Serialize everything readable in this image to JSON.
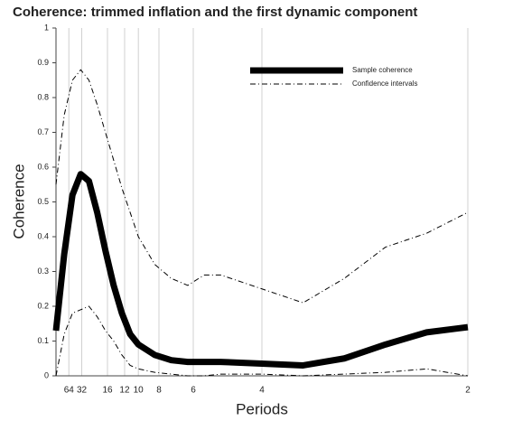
{
  "chart_data": {
    "type": "line",
    "title": "Coherence: trimmed inflation and the first dynamic component",
    "x_label": "Periods",
    "y_label": "Coherence",
    "x": [
      0,
      0.01,
      0.02,
      0.03,
      0.04,
      0.05,
      0.06,
      0.07,
      0.08,
      0.09,
      0.1,
      0.12,
      0.14,
      0.16,
      0.18,
      0.2,
      0.25,
      0.3,
      0.35,
      0.4,
      0.45,
      0.5
    ],
    "series": [
      {
        "name": "Sample coherence",
        "color": "#000000",
        "style": "solid",
        "width": 7,
        "values": [
          0.13,
          0.35,
          0.52,
          0.58,
          0.56,
          0.47,
          0.36,
          0.26,
          0.18,
          0.12,
          0.09,
          0.06,
          0.045,
          0.04,
          0.04,
          0.04,
          0.035,
          0.03,
          0.05,
          0.09,
          0.125,
          0.14
        ]
      },
      {
        "name": "Confidence intervals",
        "color": "#000000",
        "style": "dashdot",
        "width": 1,
        "values": [
          0.55,
          0.75,
          0.85,
          0.88,
          0.85,
          0.78,
          0.7,
          0.62,
          0.54,
          0.47,
          0.4,
          0.32,
          0.28,
          0.26,
          0.29,
          0.29,
          0.25,
          0.21,
          0.28,
          0.37,
          0.41,
          0.47
        ]
      },
      {
        "color": "#000000",
        "style": "dashdot",
        "width": 1,
        "values": [
          0.0,
          0.12,
          0.18,
          0.19,
          0.2,
          0.17,
          0.13,
          0.1,
          0.06,
          0.03,
          0.02,
          0.01,
          0.005,
          0,
          0,
          0.005,
          0.005,
          0,
          0.005,
          0.01,
          0.02,
          0.0
        ]
      }
    ],
    "xlim": [
      0,
      0.5
    ],
    "xticks": [
      {
        "value": 0.015625,
        "label": "64"
      },
      {
        "value": 0.03125,
        "label": "32"
      },
      {
        "value": 0.0625,
        "label": "16"
      },
      {
        "value": 0.083333,
        "label": "12"
      },
      {
        "value": 0.1,
        "label": "10"
      },
      {
        "value": 0.125,
        "label": "8"
      },
      {
        "value": 0.166667,
        "label": "6"
      },
      {
        "value": 0.25,
        "label": "4"
      },
      {
        "value": 0.5,
        "label": "2"
      }
    ],
    "ylim": [
      0,
      1
    ],
    "yticks": [
      0,
      0.1,
      0.2,
      0.3,
      0.4,
      0.5,
      0.6,
      0.7,
      0.8,
      0.9,
      1
    ],
    "grid": "x",
    "legend": "upper right"
  }
}
